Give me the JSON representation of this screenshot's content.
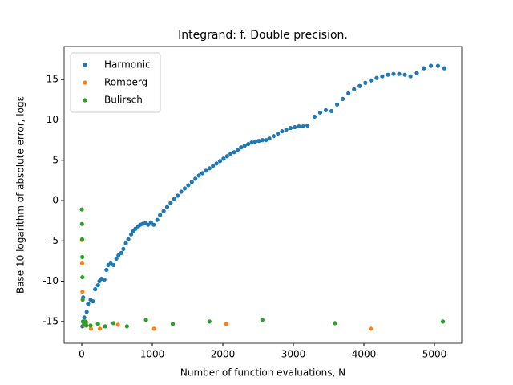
{
  "chart_data": {
    "type": "scatter",
    "title": "Integrand: f. Double precision.",
    "xlabel": "Number of function evaluations, N",
    "ylabel": "Base 10 logarithm of absolute error, logε",
    "xlim": [
      -250,
      5386
    ],
    "ylim": [
      -17.7,
      19.1
    ],
    "xticks": [
      0,
      1000,
      2000,
      3000,
      4000,
      5000
    ],
    "yticks": [
      -15,
      -10,
      -5,
      0,
      5,
      10,
      15
    ],
    "legend": "upper left",
    "series": [
      {
        "name": "Harmonic",
        "color": "#1f77b4",
        "x": [
          10,
          20,
          35,
          50,
          70,
          90,
          125,
          160,
          190,
          230,
          250,
          280,
          320,
          350,
          375,
          410,
          450,
          490,
          520,
          560,
          590,
          625,
          660,
          700,
          730,
          760,
          800,
          830,
          860,
          900,
          940,
          980,
          1020,
          1070,
          1110,
          1160,
          1210,
          1260,
          1310,
          1360,
          1410,
          1460,
          1510,
          1560,
          1610,
          1660,
          1710,
          1760,
          1810,
          1860,
          1910,
          1960,
          2010,
          2060,
          2110,
          2160,
          2210,
          2260,
          2310,
          2360,
          2410,
          2460,
          2510,
          2560,
          2610,
          2660,
          2720,
          2780,
          2840,
          2900,
          2960,
          3020,
          3080,
          3140,
          3200,
          3300,
          3380,
          3460,
          3540,
          3620,
          3700,
          3780,
          3860,
          3940,
          4020,
          4100,
          4180,
          4260,
          4340,
          4420,
          4500,
          4580,
          4660,
          4750,
          4850,
          4950,
          5050,
          5140
        ],
        "values": [
          -15.6,
          -12.0,
          -14.5,
          -15.0,
          -13.8,
          -12.8,
          -12.3,
          -12.5,
          -11.0,
          -10.5,
          -10.0,
          -9.7,
          -9.8,
          -8.6,
          -8.0,
          -7.8,
          -8.0,
          -7.2,
          -6.8,
          -6.5,
          -6.0,
          -5.3,
          -4.8,
          -4.2,
          -3.8,
          -3.5,
          -3.2,
          -3.0,
          -2.9,
          -2.8,
          -3.0,
          -2.7,
          -3.0,
          -2.4,
          -1.8,
          -1.3,
          -0.8,
          -0.3,
          0.2,
          0.6,
          1.1,
          1.5,
          1.9,
          2.3,
          2.7,
          3.1,
          3.4,
          3.7,
          4.0,
          4.3,
          4.6,
          4.9,
          5.2,
          5.5,
          5.8,
          6.0,
          6.3,
          6.6,
          6.8,
          7.0,
          7.2,
          7.3,
          7.4,
          7.5,
          7.5,
          7.7,
          8.0,
          8.3,
          8.6,
          8.8,
          9.0,
          9.1,
          9.2,
          9.2,
          9.3,
          10.4,
          10.9,
          11.2,
          11.1,
          11.9,
          12.6,
          13.3,
          13.8,
          14.2,
          14.6,
          14.9,
          15.2,
          15.4,
          15.6,
          15.7,
          15.7,
          15.6,
          15.4,
          15.8,
          16.4,
          16.7,
          16.7,
          16.4
        ]
      },
      {
        "name": "Romberg",
        "color": "#ff7f0e",
        "x": [
          3,
          5,
          9,
          17,
          33,
          65,
          129,
          257,
          513,
          1025,
          2049,
          4097
        ],
        "values": [
          -4.9,
          -7.8,
          -11.3,
          -15.0,
          -15.5,
          -15.1,
          -15.9,
          -15.9,
          -15.4,
          -15.9,
          -15.3,
          -15.9
        ]
      },
      {
        "name": "Bulirsch",
        "color": "#2ca02c",
        "x": [
          1,
          3,
          5,
          7,
          9,
          13,
          17,
          25,
          33,
          49,
          65,
          125,
          230,
          330,
          450,
          640,
          910,
          1290,
          1810,
          2560,
          3590,
          5120
        ],
        "values": [
          -1.1,
          -2.9,
          -4.8,
          -7.0,
          -9.5,
          -12.3,
          -15.0,
          -15.0,
          -15.3,
          -15.0,
          -15.5,
          -15.5,
          -15.3,
          -15.6,
          -15.2,
          -15.6,
          -14.8,
          -15.3,
          -15.0,
          -14.8,
          -15.2,
          -15.0
        ]
      }
    ]
  }
}
